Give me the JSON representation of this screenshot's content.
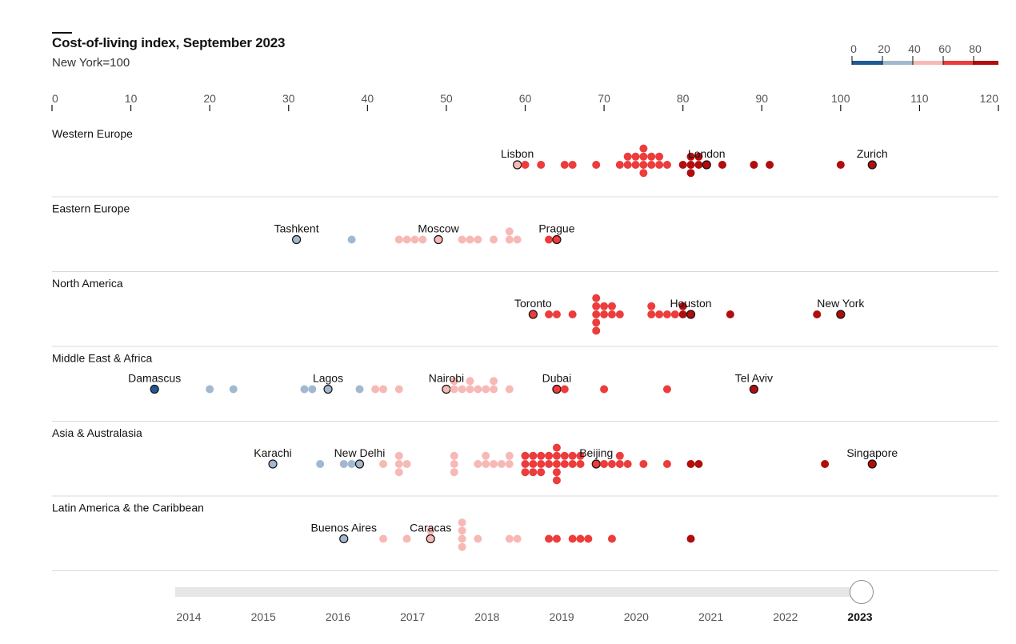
{
  "chart_data": {
    "type": "beeswarm",
    "title": "Cost-of-living index, September 2023",
    "subtitle": "New York=100",
    "xlim": [
      0,
      120
    ],
    "xticks": [
      0,
      10,
      20,
      30,
      40,
      50,
      60,
      70,
      80,
      90,
      100,
      110,
      120
    ],
    "legend": {
      "labels": [
        "0",
        "20",
        "40",
        "60",
        "80"
      ],
      "bins": [
        {
          "from": 0,
          "to": 20,
          "color": "#1f5a96"
        },
        {
          "from": 20,
          "to": 40,
          "color": "#a2b8cf"
        },
        {
          "from": 40,
          "to": 60,
          "color": "#f7b9b6"
        },
        {
          "from": 60,
          "to": 80,
          "color": "#ec3c3c"
        },
        {
          "from": 80,
          "to": 120,
          "color": "#b10d0d"
        }
      ]
    },
    "regions": [
      {
        "name": "Western Europe",
        "values": [
          59,
          60,
          62,
          65,
          66,
          69,
          72,
          73,
          73,
          74,
          74,
          75,
          75,
          75,
          75,
          76,
          76,
          77,
          77,
          78,
          80,
          81,
          81,
          81,
          82,
          82,
          83,
          85,
          89,
          91,
          100,
          104
        ],
        "labeled": [
          {
            "name": "Lisbon",
            "value": 59
          },
          {
            "name": "London",
            "value": 83
          },
          {
            "name": "Zurich",
            "value": 104
          }
        ]
      },
      {
        "name": "Eastern Europe",
        "values": [
          31,
          38,
          44,
          45,
          46,
          47,
          49,
          52,
          53,
          54,
          56,
          58,
          58,
          59,
          63,
          64
        ],
        "labeled": [
          {
            "name": "Tashkent",
            "value": 31
          },
          {
            "name": "Moscow",
            "value": 49
          },
          {
            "name": "Prague",
            "value": 64
          }
        ]
      },
      {
        "name": "North America",
        "values": [
          61,
          63,
          64,
          66,
          69,
          69,
          69,
          69,
          69,
          70,
          70,
          71,
          71,
          72,
          76,
          76,
          77,
          78,
          79,
          80,
          80,
          81,
          86,
          97,
          100
        ],
        "labeled": [
          {
            "name": "Toronto",
            "value": 61
          },
          {
            "name": "Houston",
            "value": 81
          },
          {
            "name": "New York",
            "value": 100
          }
        ]
      },
      {
        "name": "Middle East & Africa",
        "values": [
          13,
          20,
          23,
          32,
          33,
          35,
          39,
          41,
          42,
          44,
          50,
          51,
          51,
          52,
          53,
          53,
          54,
          55,
          56,
          56,
          58,
          64,
          65,
          70,
          78,
          89
        ],
        "labeled": [
          {
            "name": "Damascus",
            "value": 13
          },
          {
            "name": "Lagos",
            "value": 35
          },
          {
            "name": "Nairobi",
            "value": 50
          },
          {
            "name": "Dubai",
            "value": 64
          },
          {
            "name": "Tel Aviv",
            "value": 89
          }
        ]
      },
      {
        "name": "Asia & Australasia",
        "values": [
          28,
          34,
          37,
          38,
          39,
          42,
          44,
          44,
          44,
          45,
          51,
          51,
          51,
          54,
          55,
          55,
          56,
          57,
          58,
          58,
          60,
          60,
          60,
          61,
          61,
          61,
          62,
          62,
          62,
          63,
          63,
          64,
          64,
          64,
          64,
          64,
          65,
          65,
          66,
          66,
          67,
          67,
          69,
          70,
          71,
          72,
          72,
          73,
          75,
          78,
          81,
          82,
          98,
          104
        ],
        "labeled": [
          {
            "name": "Karachi",
            "value": 28
          },
          {
            "name": "New Delhi",
            "value": 39
          },
          {
            "name": "Beijing",
            "value": 69
          },
          {
            "name": "Singapore",
            "value": 104
          }
        ]
      },
      {
        "name": "Latin America & the Caribbean",
        "values": [
          37,
          42,
          45,
          48,
          48,
          52,
          52,
          52,
          52,
          54,
          58,
          59,
          63,
          64,
          66,
          67,
          68,
          71,
          81
        ],
        "labeled": [
          {
            "name": "Buenos Aires",
            "value": 37
          },
          {
            "name": "Caracas",
            "value": 48
          }
        ]
      }
    ]
  },
  "timeline": {
    "years": [
      "2014",
      "2015",
      "2016",
      "2017",
      "2018",
      "2019",
      "2020",
      "2021",
      "2022",
      "2023"
    ],
    "selected": "2023"
  }
}
